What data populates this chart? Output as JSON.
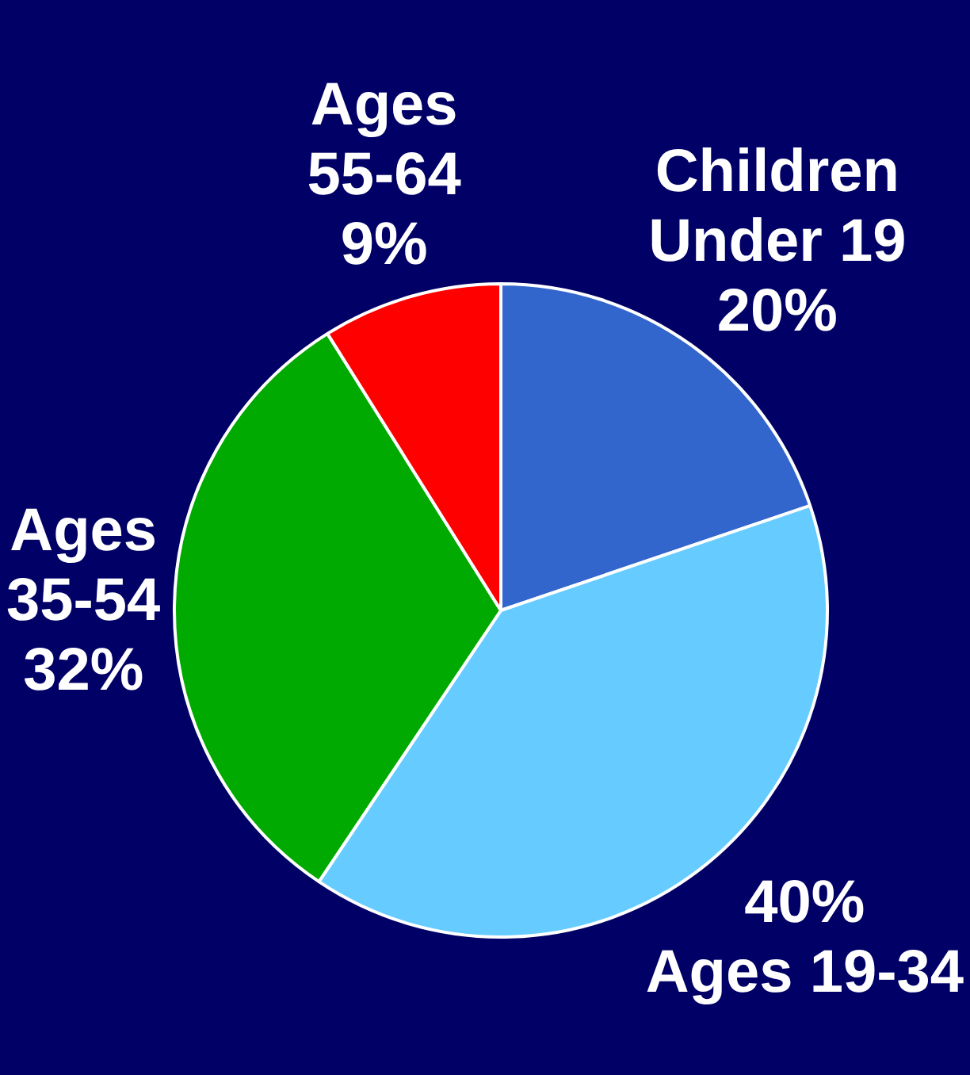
{
  "chart_data": {
    "type": "pie",
    "categories": [
      "Children Under 19",
      "Ages 19-34",
      "Ages 35-54",
      "Ages 55-64"
    ],
    "values": [
      20,
      40,
      32,
      9
    ],
    "value_labels": [
      "20%",
      "40%",
      "32%",
      "9%"
    ],
    "colors": [
      "#3366cc",
      "#66ccff",
      "#00aa00",
      "#ff0000"
    ],
    "legend": false
  }
}
